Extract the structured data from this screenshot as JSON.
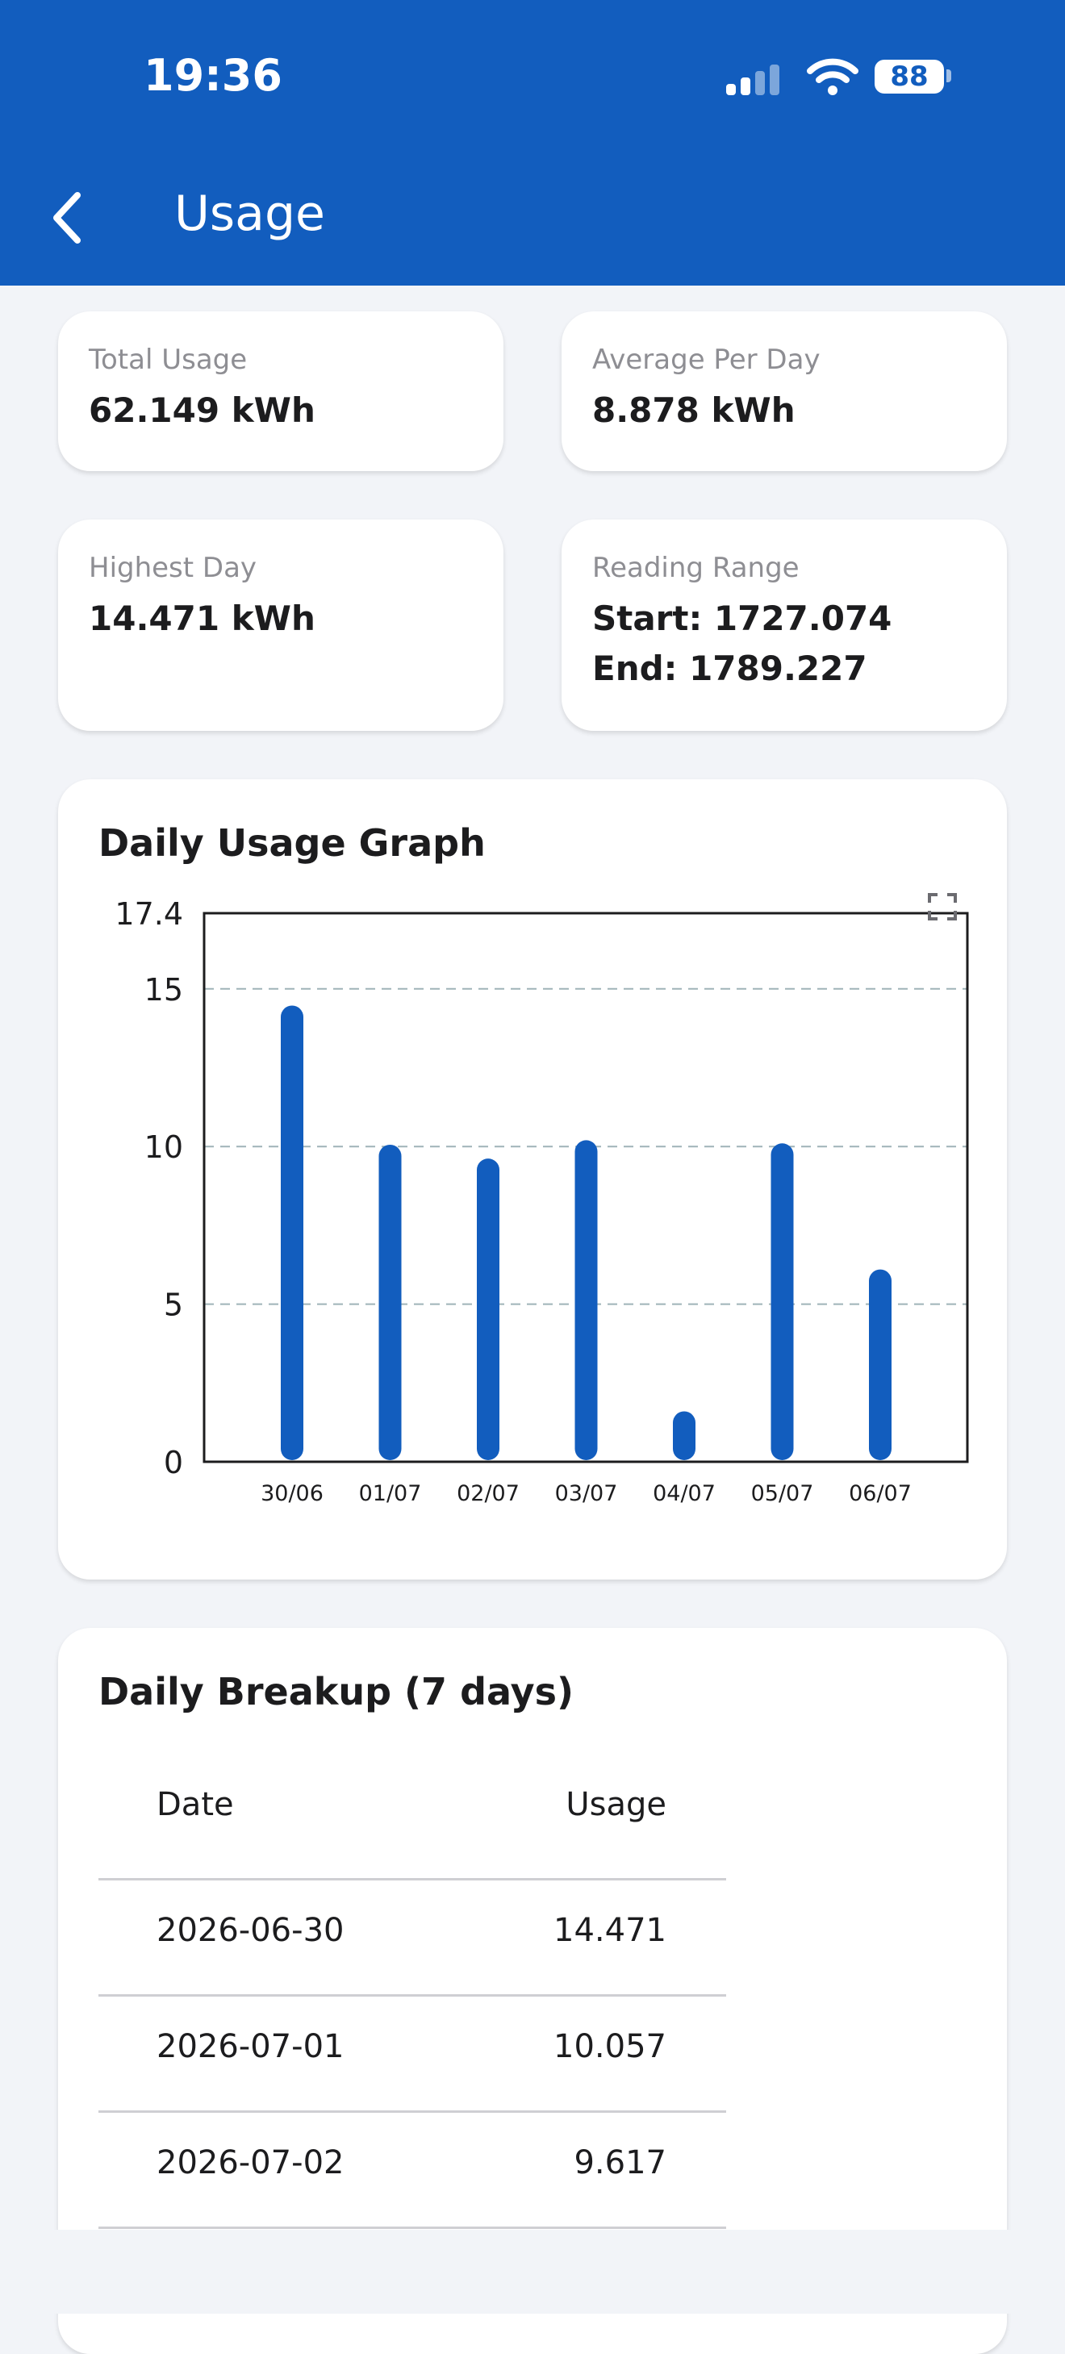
{
  "status_bar": {
    "time": "19:36",
    "battery": "88"
  },
  "app_bar": {
    "title": "Usage"
  },
  "stats": {
    "total_usage": {
      "label": "Total Usage",
      "value": "62.149 kWh"
    },
    "average_per_day": {
      "label": "Average Per Day",
      "value": "8.878 kWh"
    },
    "highest_day": {
      "label": "Highest Day",
      "value": "14.471 kWh"
    },
    "reading_range": {
      "label": "Reading Range",
      "start": "Start: 1727.074",
      "end": "End: 1789.227"
    }
  },
  "graph": {
    "title": "Daily Usage Graph"
  },
  "chart_data": {
    "type": "bar",
    "title": "Daily Usage Graph",
    "categories": [
      "30/06",
      "01/07",
      "02/07",
      "03/07",
      "04/07",
      "05/07",
      "06/07"
    ],
    "values": [
      14.471,
      10.057,
      9.617,
      10.2,
      1.6,
      10.1,
      6.1
    ],
    "ylim": [
      0,
      17.4
    ],
    "yticks": [
      "0",
      "5",
      "10",
      "15",
      "17.4"
    ],
    "ytick_values": [
      0,
      5,
      10,
      15,
      17.4
    ],
    "grid": "horizontal-dashed",
    "bar_color": "#125dbe"
  },
  "breakup": {
    "title": "Daily Breakup (7 days)",
    "headers": {
      "date": "Date",
      "usage": "Usage"
    },
    "rows": [
      {
        "date": "2026-06-30",
        "usage": "14.471"
      },
      {
        "date": "2026-07-01",
        "usage": "10.057"
      },
      {
        "date": "2026-07-02",
        "usage": "9.617"
      }
    ]
  },
  "colors": {
    "primary": "#125dbe",
    "background": "#f2f4f8",
    "card": "#ffffff"
  }
}
